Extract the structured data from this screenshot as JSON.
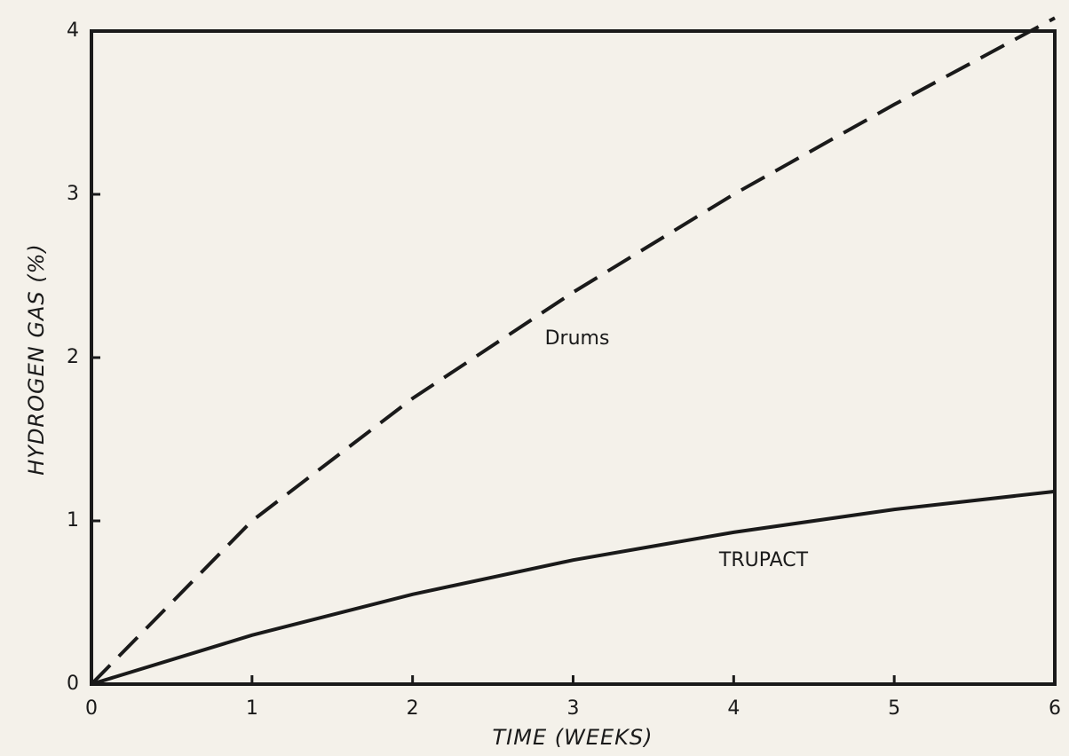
{
  "chart_data": {
    "type": "line",
    "xlabel": "TIME (WEEKS)",
    "ylabel": "HYDROGEN GAS (%)",
    "x": [
      0,
      1,
      2,
      3,
      4,
      5,
      6
    ],
    "series": [
      {
        "name": "Drums",
        "color": "#1a1a1a",
        "line_style": "dashed",
        "values": [
          0,
          1.0,
          1.75,
          2.4,
          3.0,
          3.55,
          4.08
        ]
      },
      {
        "name": "TRUPACT",
        "color": "#1a1a1a",
        "line_style": "solid",
        "values": [
          0,
          0.3,
          0.55,
          0.76,
          0.93,
          1.07,
          1.18
        ]
      }
    ],
    "xlim": [
      0,
      6
    ],
    "xticks": [
      0,
      1,
      2,
      3,
      4,
      5,
      6
    ],
    "ylim": [
      0,
      4
    ],
    "yticks": [
      0,
      1,
      2,
      3,
      4
    ],
    "grid": false
  }
}
